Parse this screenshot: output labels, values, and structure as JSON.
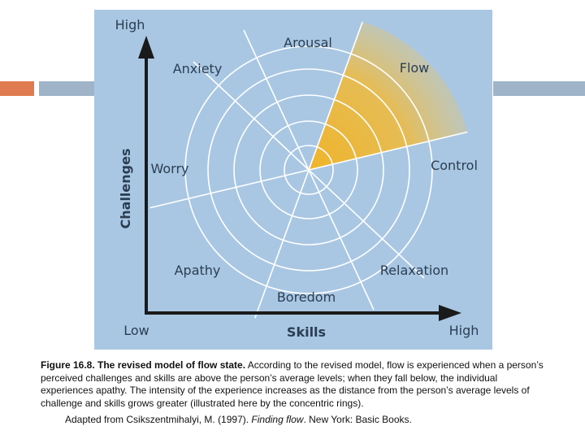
{
  "diagram": {
    "y_axis_label": "Challenges",
    "y_axis_high": "High",
    "x_axis_label": "Skills",
    "x_axis_low": "Low",
    "x_axis_high": "High",
    "states": {
      "arousal": "Arousal",
      "flow": "Flow",
      "anxiety": "Anxiety",
      "worry": "Worry",
      "control": "Control",
      "apathy": "Apathy",
      "relaxation": "Relaxation",
      "boredom": "Boredom"
    },
    "colors": {
      "background": "#a9c7e3",
      "lines": "#ffffff",
      "axis": "#1a1a1a",
      "flow_highlight": "#f0b429"
    }
  },
  "caption": {
    "bold": "Figure 16.8. The revised model of flow state.",
    "text": " According to the revised model, flow is experienced when a person’s perceived challenges and skills are above the person’s average levels; when they fall below, the individual experiences apathy. The intensity of the experience increases as the distance from the person’s average levels of challenge and skills grows greater (illustrated here by the concentric rings)."
  },
  "citation": {
    "before": "Adapted from Csikszentmihalyi, M. (1997). ",
    "title": "Finding flow",
    "after": ". New York: Basic Books."
  }
}
